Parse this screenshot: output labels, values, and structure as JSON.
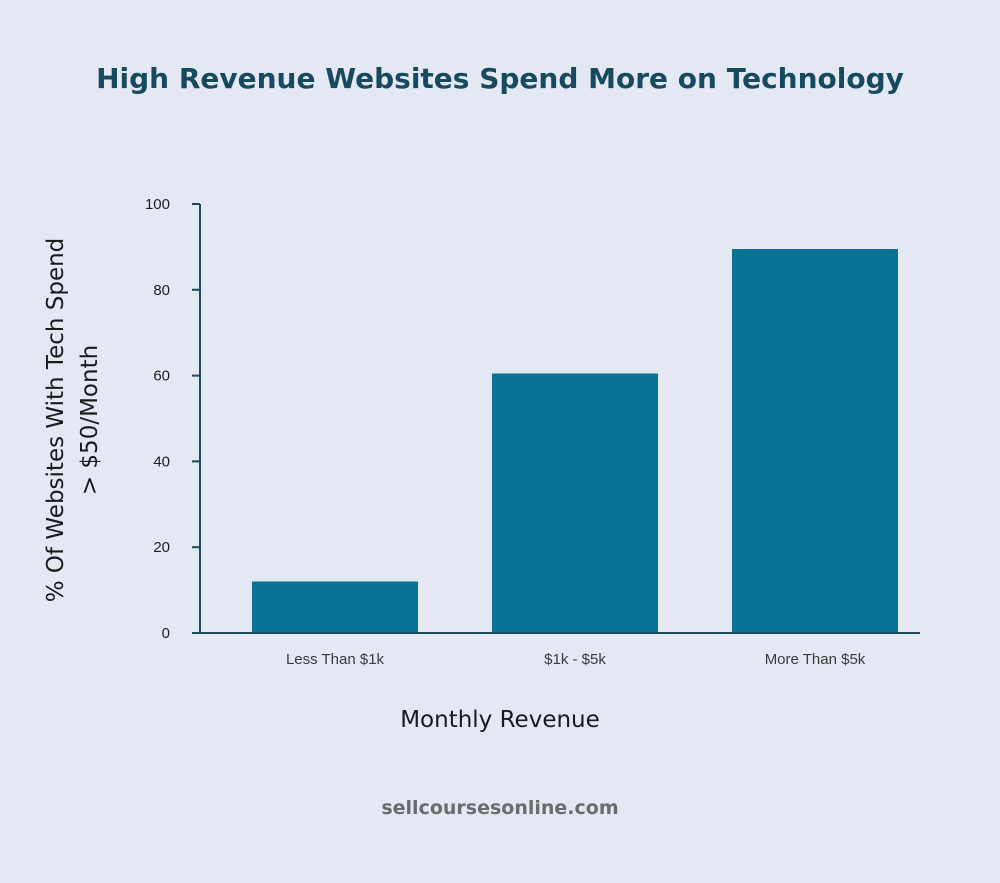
{
  "footer": "sellcoursesonline.com",
  "colors": {
    "background": "#e3e8f3",
    "bar": "#067294",
    "axis": "#1b4a5c",
    "title": "#174a5e"
  },
  "chart_data": {
    "type": "bar",
    "title": "High Revenue Websites Spend More on Technology",
    "xlabel": "Monthly Revenue",
    "ylabel": "% Of Websites With Tech Spend > $50/Month",
    "ylabel_lines": [
      "% Of Websites With Tech Spend",
      "> $50/Month"
    ],
    "categories": [
      "Less Than $1k",
      "$1k - $5k",
      "More Than $5k"
    ],
    "values": [
      12,
      60.5,
      89.5
    ],
    "ylim": [
      0,
      100
    ],
    "yticks": [
      0,
      20,
      40,
      60,
      80,
      100
    ],
    "grid": false,
    "legend": "none"
  }
}
